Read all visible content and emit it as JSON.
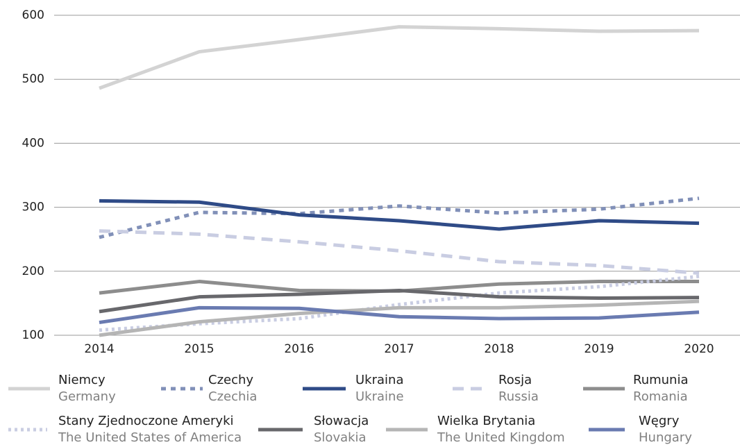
{
  "chart_data": {
    "type": "line",
    "x": [
      2014,
      2015,
      2016,
      2017,
      2018,
      2019,
      2020
    ],
    "xlim": [
      2014,
      2020
    ],
    "xticks": [
      2014,
      2015,
      2016,
      2017,
      2018,
      2019,
      2020
    ],
    "ylim": [
      100,
      600
    ],
    "yticks": [
      100,
      200,
      300,
      400,
      500,
      600
    ],
    "grid": true,
    "series": [
      {
        "name": "Niemcy",
        "subname": "Germany",
        "color": "#d3d3d3",
        "style": "solid",
        "values": [
          486,
          543,
          562,
          582,
          579,
          575,
          576
        ]
      },
      {
        "name": "Czechy",
        "subname": "Czechia",
        "color": "#8190b8",
        "style": "dashed",
        "values": [
          253,
          292,
          290,
          302,
          291,
          297,
          314
        ]
      },
      {
        "name": "Ukraina",
        "subname": "Ukraine",
        "color": "#2f4b87",
        "style": "solid",
        "values": [
          310,
          308,
          288,
          279,
          266,
          279,
          275
        ]
      },
      {
        "name": "Rosja",
        "subname": "Russia",
        "color": "#c9cde2",
        "style": "long-dashed",
        "values": [
          263,
          258,
          246,
          232,
          215,
          209,
          197
        ]
      },
      {
        "name": "Rumunia",
        "subname": "Romania",
        "color": "#8d8d8d",
        "style": "solid",
        "values": [
          166,
          184,
          170,
          169,
          180,
          184,
          184
        ]
      },
      {
        "name": "Stany Zjednoczone Ameryki",
        "subname": "The United States of America",
        "color": "#c9cde2",
        "style": "dotted",
        "values": [
          108,
          118,
          126,
          148,
          166,
          176,
          192
        ]
      },
      {
        "name": "Słowacja",
        "subname": "Slovakia",
        "color": "#68686c",
        "style": "solid",
        "values": [
          137,
          160,
          164,
          170,
          160,
          158,
          159
        ]
      },
      {
        "name": "Wielka Brytania",
        "subname": "The United Kingdom",
        "color": "#b5b5b5",
        "style": "solid",
        "values": [
          100,
          121,
          134,
          143,
          143,
          147,
          153
        ]
      },
      {
        "name": "Węgry",
        "subname": "Hungary",
        "color": "#6a7bb1",
        "style": "solid",
        "values": [
          120,
          143,
          142,
          129,
          126,
          127,
          136
        ]
      }
    ]
  }
}
